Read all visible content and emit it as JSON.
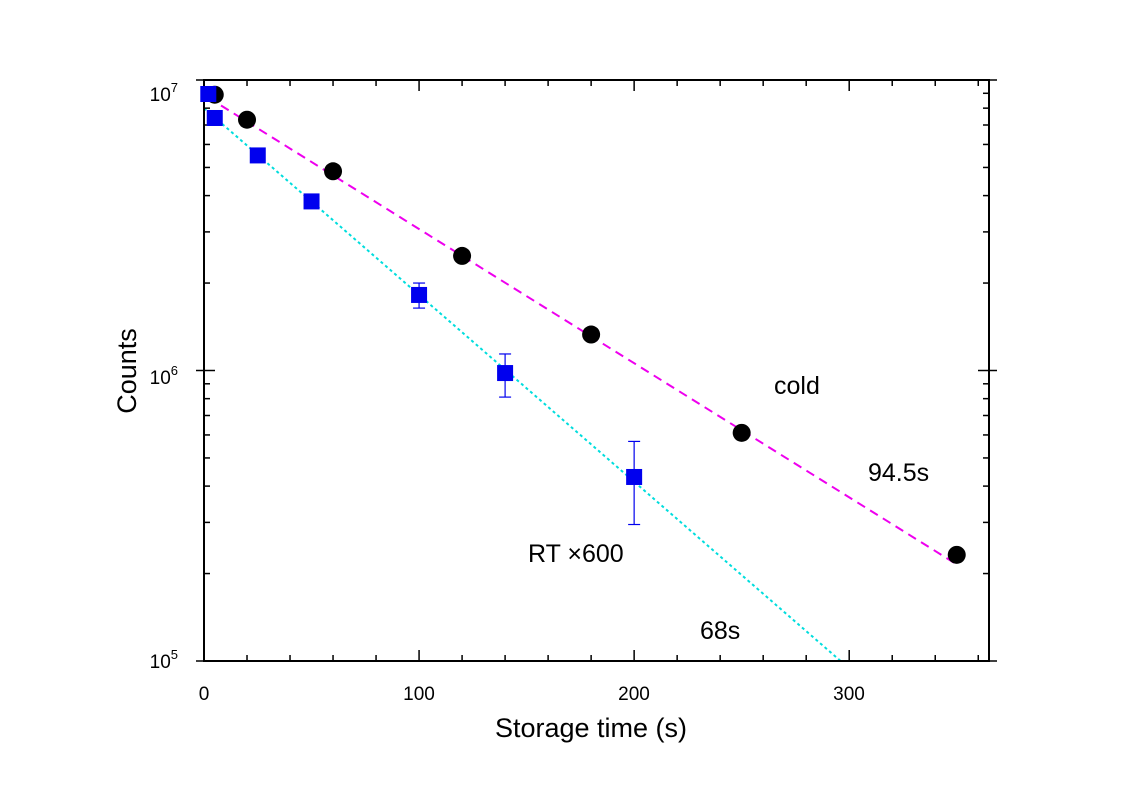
{
  "chart_data": {
    "type": "scatter",
    "title": "",
    "xlabel": "Storage time (s)",
    "ylabel": "Counts",
    "xlim": [
      0,
      365
    ],
    "ylim": [
      100000,
      10000000
    ],
    "yscale": "log",
    "grid": false,
    "x_ticks": [
      0,
      100,
      200,
      300
    ],
    "x_tick_labels": [
      "0",
      "100",
      "200",
      "300"
    ],
    "y_ticks": [
      100000,
      1000000,
      10000000
    ],
    "y_tick_bases": [
      "10",
      "10",
      "10"
    ],
    "y_tick_exponents": [
      "5",
      "6",
      "7"
    ],
    "series": [
      {
        "key": "cold",
        "marker": "circle",
        "color": "#000000",
        "x": [
          5,
          20,
          60,
          120,
          180,
          250,
          350
        ],
        "y": [
          8900000,
          7300000,
          4850000,
          2480000,
          1330000,
          610000,
          232000
        ]
      },
      {
        "key": "rt",
        "marker": "square",
        "color": "#0000ee",
        "x": [
          2,
          5,
          25,
          50,
          100,
          140,
          200
        ],
        "y": [
          8950000,
          7400000,
          5500000,
          3820000,
          1820000,
          980000,
          430000
        ],
        "yerr_low": [
          0,
          0,
          0,
          0,
          180000,
          170000,
          135000
        ],
        "yerr_high": [
          0,
          0,
          0,
          0,
          180000,
          160000,
          140000
        ]
      }
    ],
    "fits": [
      {
        "key": "cold-fit",
        "style": "dashed",
        "color": "#ee00ee",
        "x": [
          2,
          350
        ],
        "y": [
          8700000,
          215000
        ]
      },
      {
        "key": "rt-fit",
        "style": "dotted",
        "color": "#00dddd",
        "x": [
          0,
          296
        ],
        "y": [
          8000000,
          100000
        ]
      }
    ],
    "annotations": {
      "cold": "cold",
      "cold_tau": "94.5s",
      "rt": "RT ×600",
      "rt_tau": "68s"
    }
  }
}
